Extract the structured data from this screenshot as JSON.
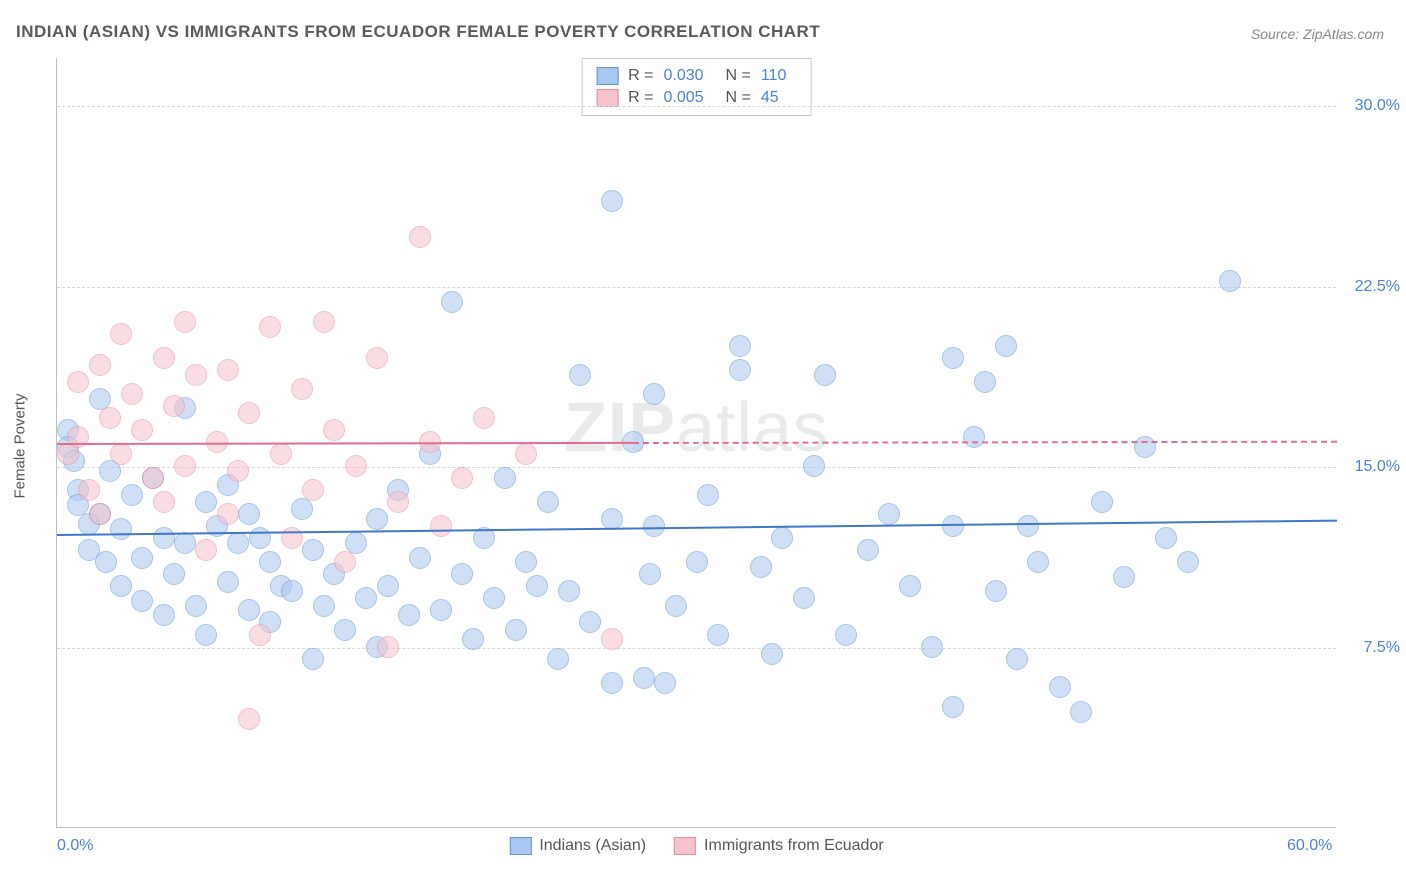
{
  "title": "INDIAN (ASIAN) VS IMMIGRANTS FROM ECUADOR FEMALE POVERTY CORRELATION CHART",
  "source": "Source: ZipAtlas.com",
  "watermark": {
    "bold": "ZIP",
    "rest": "atlas"
  },
  "ylabel": "Female Poverty",
  "chart": {
    "type": "scatter",
    "xlim": [
      0,
      60
    ],
    "ylim": [
      0,
      32
    ],
    "xticks": [
      {
        "value": 0,
        "label": "0.0%"
      },
      {
        "value": 60,
        "label": "60.0%"
      }
    ],
    "yticks": [
      {
        "value": 7.5,
        "label": "7.5%"
      },
      {
        "value": 15.0,
        "label": "15.0%"
      },
      {
        "value": 22.5,
        "label": "22.5%"
      },
      {
        "value": 30.0,
        "label": "30.0%"
      }
    ],
    "background": "#ffffff",
    "grid_color": "#d7d7d7",
    "axis_color": "#bfbfbf",
    "marker_radius": 11,
    "marker_opacity": 0.55,
    "series": [
      {
        "name": "Indians (Asian)",
        "fill": "#a9c8ef",
        "stroke": "#5f93d9",
        "r_value": "0.030",
        "n_value": "110",
        "trend": {
          "y_start": 12.2,
          "y_end": 12.8,
          "color": "#3f77c9",
          "width": 2.5,
          "solid": true,
          "x_end_frac": 1.0
        },
        "points": [
          [
            0.5,
            16.5
          ],
          [
            0.5,
            15.8
          ],
          [
            0.8,
            15.2
          ],
          [
            1,
            14.0
          ],
          [
            1,
            13.4
          ],
          [
            1.5,
            12.6
          ],
          [
            1.5,
            11.5
          ],
          [
            2,
            17.8
          ],
          [
            2,
            13.0
          ],
          [
            2.3,
            11.0
          ],
          [
            2.5,
            14.8
          ],
          [
            3,
            10.0
          ],
          [
            3,
            12.4
          ],
          [
            3.5,
            13.8
          ],
          [
            4,
            11.2
          ],
          [
            4,
            9.4
          ],
          [
            4.5,
            14.5
          ],
          [
            5,
            12.0
          ],
          [
            5,
            8.8
          ],
          [
            5.5,
            10.5
          ],
          [
            6,
            17.4
          ],
          [
            6,
            11.8
          ],
          [
            6.5,
            9.2
          ],
          [
            7,
            13.5
          ],
          [
            7,
            8.0
          ],
          [
            7.5,
            12.5
          ],
          [
            8,
            14.2
          ],
          [
            8,
            10.2
          ],
          [
            8.5,
            11.8
          ],
          [
            9,
            9.0
          ],
          [
            9,
            13.0
          ],
          [
            9.5,
            12.0
          ],
          [
            10,
            8.5
          ],
          [
            10,
            11.0
          ],
          [
            10.5,
            10.0
          ],
          [
            11,
            9.8
          ],
          [
            11.5,
            13.2
          ],
          [
            12,
            7.0
          ],
          [
            12,
            11.5
          ],
          [
            12.5,
            9.2
          ],
          [
            13,
            10.5
          ],
          [
            13.5,
            8.2
          ],
          [
            14,
            11.8
          ],
          [
            14.5,
            9.5
          ],
          [
            15,
            12.8
          ],
          [
            15,
            7.5
          ],
          [
            15.5,
            10.0
          ],
          [
            16,
            14.0
          ],
          [
            16.5,
            8.8
          ],
          [
            17,
            11.2
          ],
          [
            17.5,
            15.5
          ],
          [
            18,
            9.0
          ],
          [
            18.5,
            21.8
          ],
          [
            19,
            10.5
          ],
          [
            19.5,
            7.8
          ],
          [
            20,
            12.0
          ],
          [
            20.5,
            9.5
          ],
          [
            21,
            14.5
          ],
          [
            21.5,
            8.2
          ],
          [
            22,
            11.0
          ],
          [
            22.5,
            10.0
          ],
          [
            23,
            13.5
          ],
          [
            23.5,
            7.0
          ],
          [
            24,
            9.8
          ],
          [
            24.5,
            18.8
          ],
          [
            25,
            8.5
          ],
          [
            26,
            26.0
          ],
          [
            26,
            12.8
          ],
          [
            26,
            6.0
          ],
          [
            27,
            16.0
          ],
          [
            27.5,
            6.2
          ],
          [
            27.8,
            10.5
          ],
          [
            28,
            18.0
          ],
          [
            28,
            12.5
          ],
          [
            28.5,
            6.0
          ],
          [
            29,
            9.2
          ],
          [
            30,
            11.0
          ],
          [
            30.5,
            13.8
          ],
          [
            31,
            8.0
          ],
          [
            32,
            20.0
          ],
          [
            32,
            19.0
          ],
          [
            33,
            10.8
          ],
          [
            33.5,
            7.2
          ],
          [
            34,
            12.0
          ],
          [
            35,
            9.5
          ],
          [
            35.5,
            15.0
          ],
          [
            36,
            18.8
          ],
          [
            37,
            8.0
          ],
          [
            38,
            11.5
          ],
          [
            39,
            13.0
          ],
          [
            40,
            10.0
          ],
          [
            41,
            7.5
          ],
          [
            42,
            19.5
          ],
          [
            42,
            12.5
          ],
          [
            42,
            5.0
          ],
          [
            43,
            16.2
          ],
          [
            43.5,
            18.5
          ],
          [
            44,
            9.8
          ],
          [
            44.5,
            20.0
          ],
          [
            45,
            7.0
          ],
          [
            45.5,
            12.5
          ],
          [
            46,
            11.0
          ],
          [
            47,
            5.8
          ],
          [
            48,
            4.8
          ],
          [
            49,
            13.5
          ],
          [
            50,
            10.4
          ],
          [
            51,
            15.8
          ],
          [
            52,
            12.0
          ],
          [
            53,
            11.0
          ],
          [
            55,
            22.7
          ]
        ]
      },
      {
        "name": "Immigrants from Ecuador",
        "fill": "#f6c2cc",
        "stroke": "#e88aa0",
        "r_value": "0.005",
        "n_value": "45",
        "trend": {
          "y_start": 16.0,
          "y_end": 16.1,
          "color": "#e16f8c",
          "width": 2,
          "solid_until": 0.45,
          "x_end_frac": 1.0
        },
        "points": [
          [
            0.5,
            15.5
          ],
          [
            1,
            16.2
          ],
          [
            1,
            18.5
          ],
          [
            1.5,
            14.0
          ],
          [
            2,
            19.2
          ],
          [
            2,
            13.0
          ],
          [
            2.5,
            17.0
          ],
          [
            3,
            20.5
          ],
          [
            3,
            15.5
          ],
          [
            3.5,
            18.0
          ],
          [
            4,
            16.5
          ],
          [
            4.5,
            14.5
          ],
          [
            5,
            19.5
          ],
          [
            5,
            13.5
          ],
          [
            5.5,
            17.5
          ],
          [
            6,
            21.0
          ],
          [
            6,
            15.0
          ],
          [
            6.5,
            18.8
          ],
          [
            7,
            11.5
          ],
          [
            7.5,
            16.0
          ],
          [
            8,
            19.0
          ],
          [
            8,
            13.0
          ],
          [
            8.5,
            14.8
          ],
          [
            9,
            17.2
          ],
          [
            9,
            4.5
          ],
          [
            9.5,
            8.0
          ],
          [
            10,
            20.8
          ],
          [
            10.5,
            15.5
          ],
          [
            11,
            12.0
          ],
          [
            11.5,
            18.2
          ],
          [
            12,
            14.0
          ],
          [
            12.5,
            21.0
          ],
          [
            13,
            16.5
          ],
          [
            13.5,
            11.0
          ],
          [
            14,
            15.0
          ],
          [
            15,
            19.5
          ],
          [
            15.5,
            7.5
          ],
          [
            16,
            13.5
          ],
          [
            17,
            24.5
          ],
          [
            17.5,
            16.0
          ],
          [
            18,
            12.5
          ],
          [
            19,
            14.5
          ],
          [
            20,
            17.0
          ],
          [
            22,
            15.5
          ],
          [
            26,
            7.8
          ]
        ]
      }
    ]
  },
  "bottom_legend": [
    {
      "label": "Indians (Asian)",
      "fill": "#a9c8ef",
      "stroke": "#5f93d9"
    },
    {
      "label": "Immigrants from Ecuador",
      "fill": "#f6c2cc",
      "stroke": "#e88aa0"
    }
  ]
}
